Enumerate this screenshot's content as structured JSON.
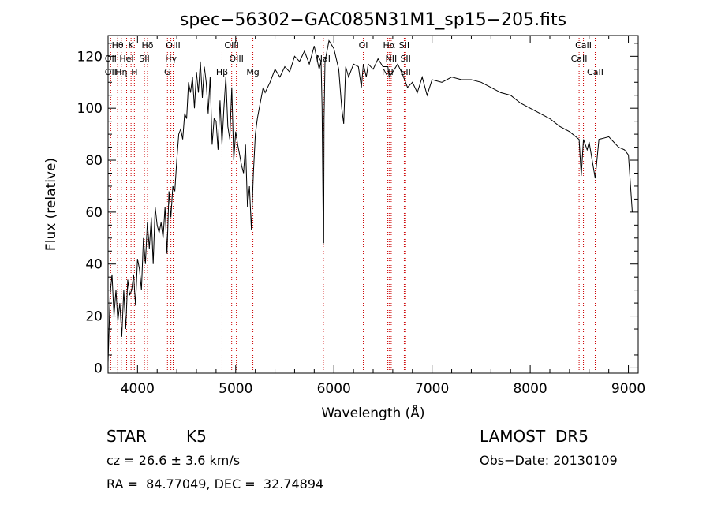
{
  "chart_data": {
    "type": "line",
    "title": "spec−56302−GAC085N31M1_sp15−205.fits",
    "xlabel": "Wavelength (Å)",
    "ylabel": "Flux (relative)",
    "xlim": [
      3700,
      9100
    ],
    "ylim": [
      -2,
      128
    ],
    "xticks": [
      4000,
      5000,
      6000,
      7000,
      8000,
      9000
    ],
    "yticks": [
      0,
      20,
      40,
      60,
      80,
      100,
      120
    ],
    "grid": false,
    "series": [
      {
        "x": [
          3700,
          3720,
          3740,
          3760,
          3780,
          3800,
          3820,
          3840,
          3860,
          3880,
          3900,
          3920,
          3940,
          3960,
          3980,
          4000,
          4020,
          4040,
          4060,
          4080,
          4100,
          4120,
          4140,
          4160,
          4180,
          4200,
          4220,
          4240,
          4260,
          4280,
          4300,
          4320,
          4340,
          4360,
          4380,
          4400,
          4420,
          4440,
          4460,
          4480,
          4500,
          4520,
          4540,
          4560,
          4580,
          4600,
          4620,
          4640,
          4660,
          4680,
          4700,
          4720,
          4740,
          4760,
          4780,
          4800,
          4820,
          4840,
          4860,
          4880,
          4900,
          4920,
          4940,
          4960,
          4980,
          5000,
          5020,
          5040,
          5060,
          5080,
          5100,
          5120,
          5140,
          5160,
          5170,
          5180,
          5200,
          5220,
          5240,
          5260,
          5280,
          5300,
          5350,
          5400,
          5450,
          5500,
          5550,
          5600,
          5650,
          5700,
          5750,
          5800,
          5850,
          5870,
          5880,
          5890,
          5896,
          5900,
          5910,
          5930,
          5950,
          6000,
          6050,
          6080,
          6100,
          6120,
          6150,
          6200,
          6250,
          6280,
          6300,
          6330,
          6350,
          6400,
          6450,
          6500,
          6550,
          6563,
          6600,
          6650,
          6700,
          6750,
          6800,
          6850,
          6900,
          6950,
          7000,
          7100,
          7200,
          7300,
          7400,
          7500,
          7600,
          7700,
          7800,
          7900,
          8000,
          8100,
          8200,
          8300,
          8400,
          8498,
          8520,
          8542,
          8580,
          8600,
          8662,
          8700,
          8800,
          8900,
          8960,
          9000,
          9040
        ],
        "y": [
          2,
          28,
          36,
          20,
          30,
          18,
          25,
          12,
          30,
          15,
          34,
          28,
          30,
          36,
          24,
          42,
          38,
          30,
          50,
          40,
          56,
          46,
          58,
          40,
          62,
          55,
          52,
          56,
          50,
          62,
          44,
          68,
          58,
          70,
          68,
          80,
          90,
          92,
          88,
          98,
          96,
          110,
          106,
          112,
          100,
          114,
          106,
          118,
          104,
          116,
          110,
          98,
          112,
          86,
          96,
          95,
          84,
          103,
          86,
          100,
          112,
          93,
          88,
          108,
          80,
          91,
          86,
          82,
          78,
          75,
          86,
          62,
          70,
          53,
          64,
          75,
          90,
          96,
          100,
          104,
          108,
          106,
          110,
          115,
          112,
          116,
          114,
          120,
          118,
          122,
          117,
          124,
          115,
          118,
          100,
          60,
          48,
          96,
          118,
          122,
          126,
          123,
          115,
          100,
          94,
          116,
          112,
          117,
          116,
          108,
          117,
          112,
          117,
          115,
          119,
          116,
          116,
          112,
          114,
          117,
          113,
          108,
          110,
          106,
          112,
          105,
          111,
          110,
          112,
          111,
          111,
          110,
          108,
          106,
          105,
          102,
          100,
          98,
          96,
          93,
          91,
          88,
          74,
          88,
          84,
          87,
          73,
          88,
          89,
          85,
          84,
          82,
          60
        ]
      }
    ],
    "annotations": [
      {
        "label": "Hθ",
        "x": 3797,
        "row": 1
      },
      {
        "label": "K",
        "x": 3934,
        "row": 1
      },
      {
        "label": "Hδ",
        "x": 4102,
        "row": 1
      },
      {
        "label": "OIII",
        "x": 4363,
        "row": 1
      },
      {
        "label": "OIII",
        "x": 4959,
        "row": 1
      },
      {
        "label": "OI",
        "x": 6300,
        "row": 1
      },
      {
        "label": "Hα",
        "x": 6563,
        "row": 1
      },
      {
        "label": "SII",
        "x": 6717,
        "row": 1
      },
      {
        "label": "CaII",
        "x": 8542,
        "row": 1
      },
      {
        "label": "OII",
        "x": 3727,
        "row": 2
      },
      {
        "label": "HeI",
        "x": 3889,
        "row": 2
      },
      {
        "label": "SII",
        "x": 4070,
        "row": 2
      },
      {
        "label": "Hγ",
        "x": 4340,
        "row": 2
      },
      {
        "label": "OIII",
        "x": 5007,
        "row": 2
      },
      {
        "label": "NaI",
        "x": 5893,
        "row": 2
      },
      {
        "label": "NII",
        "x": 6584,
        "row": 2
      },
      {
        "label": "SII",
        "x": 6731,
        "row": 2
      },
      {
        "label": "CaII",
        "x": 8498,
        "row": 2
      },
      {
        "label": "OII",
        "x": 3727,
        "row": 3
      },
      {
        "label": "Hη",
        "x": 3835,
        "row": 3
      },
      {
        "label": "H",
        "x": 3968,
        "row": 3
      },
      {
        "label": "G",
        "x": 4305,
        "row": 3
      },
      {
        "label": "Hβ",
        "x": 4861,
        "row": 3
      },
      {
        "label": "Mg",
        "x": 5175,
        "row": 3
      },
      {
        "label": "NII",
        "x": 6548,
        "row": 3
      },
      {
        "label": "SII",
        "x": 6731,
        "row": 3
      },
      {
        "label": "CaII",
        "x": 8662,
        "row": 3
      }
    ],
    "line_color": "#000000",
    "marker_color": "#cc0000"
  },
  "info": {
    "class_label": "STAR",
    "subclass": "K5",
    "survey": "LAMOST  DR5",
    "cz": "cz = 26.6 ± 3.6 km/s",
    "obs_date": "Obs−Date: 20130109",
    "coords": "RA =  84.77049, DEC =  32.74894"
  }
}
